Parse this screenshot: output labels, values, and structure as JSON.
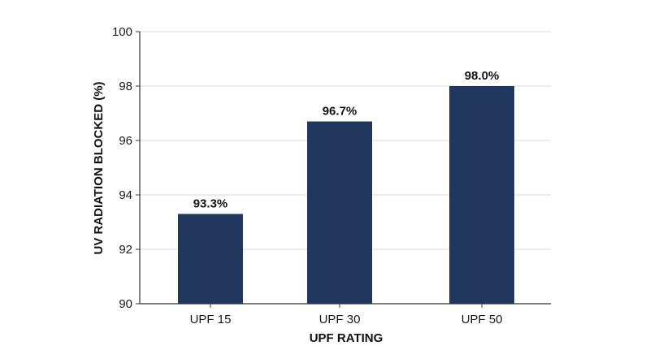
{
  "chart_data": {
    "type": "bar",
    "categories": [
      "UPF 15",
      "UPF 30",
      "UPF 50"
    ],
    "values": [
      93.3,
      96.7,
      98.0
    ],
    "data_labels": [
      "93.3%",
      "96.7%",
      "98.0%"
    ],
    "xlabel": "UPF RATING",
    "ylabel": "UV RADIATION BLOCKED (%)",
    "ylim": [
      90,
      100
    ],
    "yticks": [
      90,
      92,
      94,
      96,
      98,
      100
    ],
    "ytick_labels": [
      "90",
      "92",
      "94",
      "96",
      "98",
      "100"
    ],
    "grid": true,
    "legend": "none",
    "bar_color": "#22375e",
    "grid_color": "#d9d9d9",
    "axis_color": "#333333"
  }
}
